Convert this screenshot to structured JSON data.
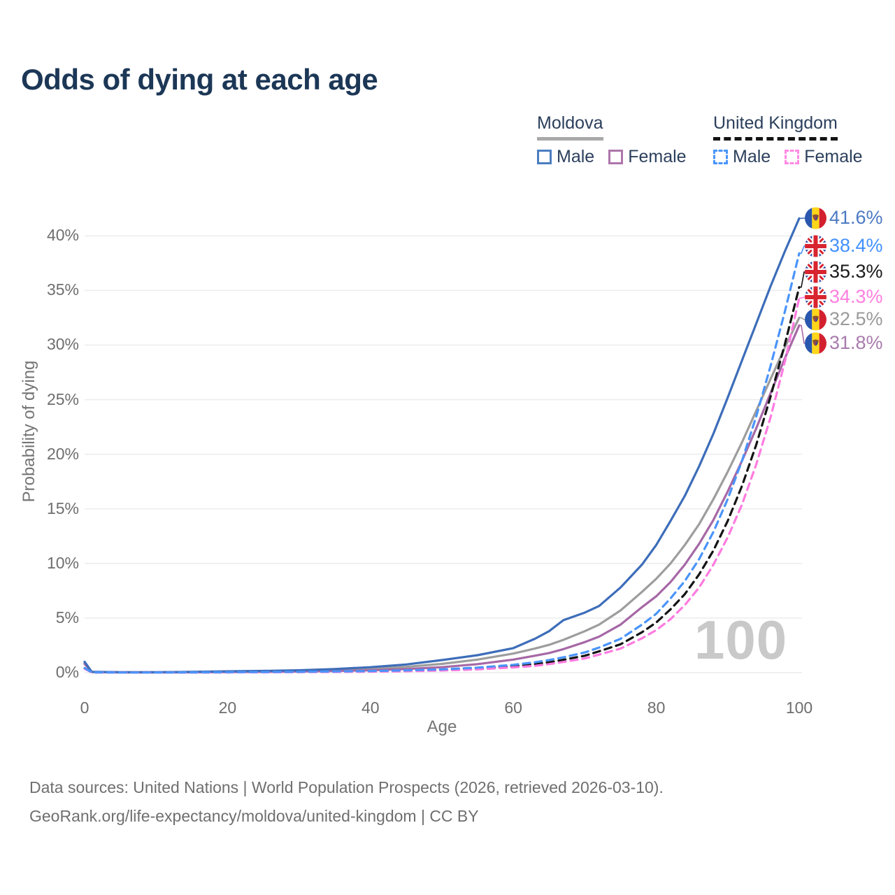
{
  "title": "Odds of dying at each age",
  "legend": {
    "groups": [
      {
        "label": "Moldova",
        "line_style": "solid",
        "underline_color": "#a9a9a9",
        "items": [
          {
            "label": "Male",
            "color": "#4b7ec0",
            "dashed": false
          },
          {
            "label": "Female",
            "color": "#ad76ac",
            "dashed": false
          }
        ]
      },
      {
        "label": "United Kingdom",
        "line_style": "dashed",
        "underline_color": "#141414",
        "items": [
          {
            "label": "Male",
            "color": "#4a94fa",
            "dashed": true
          },
          {
            "label": "Female",
            "color": "#ff8ae4",
            "dashed": true
          }
        ]
      }
    ]
  },
  "axes": {
    "y_label": "Probability of dying",
    "x_label": "Age",
    "y_ticks": [
      {
        "label": "0%",
        "value": 0
      },
      {
        "label": "5%",
        "value": 5
      },
      {
        "label": "10%",
        "value": 10
      },
      {
        "label": "15%",
        "value": 15
      },
      {
        "label": "20%",
        "value": 20
      },
      {
        "label": "25%",
        "value": 25
      },
      {
        "label": "30%",
        "value": 30
      },
      {
        "label": "35%",
        "value": 35
      },
      {
        "label": "40%",
        "value": 40
      }
    ],
    "x_ticks": [
      {
        "label": "0",
        "value": 0
      },
      {
        "label": "20",
        "value": 20
      },
      {
        "label": "40",
        "value": 40
      },
      {
        "label": "60",
        "value": 60
      },
      {
        "label": "80",
        "value": 80
      },
      {
        "label": "100",
        "value": 100
      }
    ],
    "grid": true
  },
  "watermark": "100",
  "footer": {
    "line1": "Data sources: United Nations | World Population Prospects (2026, retrieved 2026-03-10).",
    "line2": "GeoRank.org/life-expectancy/moldova/united-kingdom | CC BY"
  },
  "chart_data": {
    "type": "line",
    "title": "Odds of dying at each age",
    "xlabel": "Age",
    "ylabel": "Probability of dying",
    "xlim": [
      0,
      100
    ],
    "ylim_percent": [
      0,
      42
    ],
    "legend_position": "top-right",
    "grid": "horizontal",
    "x": [
      0,
      1,
      5,
      10,
      15,
      20,
      25,
      30,
      35,
      40,
      45,
      50,
      55,
      60,
      63,
      65,
      67,
      70,
      72,
      75,
      78,
      80,
      82,
      84,
      86,
      88,
      90,
      92,
      94,
      96,
      98,
      100
    ],
    "series": [
      {
        "name": "Moldova Male",
        "country": "Moldova",
        "sex": "Male",
        "color": "#3d6db9",
        "label_color": "#4c7ac2",
        "dashed": false,
        "flag": "moldova",
        "end_label": "41.6%",
        "values_percent": [
          1.0,
          0.08,
          0.04,
          0.04,
          0.07,
          0.12,
          0.16,
          0.22,
          0.33,
          0.5,
          0.75,
          1.15,
          1.6,
          2.25,
          3.1,
          3.8,
          4.8,
          5.5,
          6.1,
          7.8,
          9.9,
          11.7,
          13.9,
          16.2,
          18.9,
          21.9,
          25.2,
          28.6,
          32.0,
          35.4,
          38.6,
          41.6
        ]
      },
      {
        "name": "United Kingdom Male",
        "country": "United Kingdom",
        "sex": "Male",
        "color": "#4a94fa",
        "label_color": "#4291ff",
        "dashed": true,
        "flag": "uk",
        "end_label": "38.4%",
        "values_percent": [
          0.42,
          0.03,
          0.01,
          0.01,
          0.025,
          0.045,
          0.06,
          0.08,
          0.11,
          0.15,
          0.21,
          0.3,
          0.46,
          0.72,
          0.95,
          1.15,
          1.4,
          1.85,
          2.3,
          3.1,
          4.4,
          5.4,
          6.8,
          8.4,
          10.4,
          12.9,
          15.9,
          19.4,
          23.5,
          28.1,
          33.1,
          38.4
        ]
      },
      {
        "name": "United Kingdom (both sexes)",
        "country": "United Kingdom",
        "sex": "Both",
        "color": "#141414",
        "label_color": "#1a1a1a",
        "dashed": true,
        "flag": "uk",
        "end_label": "35.3%",
        "values_percent": [
          0.39,
          0.028,
          0.009,
          0.009,
          0.02,
          0.035,
          0.05,
          0.065,
          0.09,
          0.12,
          0.17,
          0.25,
          0.38,
          0.6,
          0.78,
          0.95,
          1.18,
          1.55,
          1.95,
          2.6,
          3.7,
          4.6,
          5.8,
          7.2,
          9.0,
          11.2,
          13.9,
          17.1,
          20.9,
          25.3,
          30.1,
          35.3
        ]
      },
      {
        "name": "United Kingdom Female",
        "country": "United Kingdom",
        "sex": "Female",
        "color": "#ff7be0",
        "label_color": "#ff80e0",
        "dashed": true,
        "flag": "uk",
        "end_label": "34.3%",
        "values_percent": [
          0.36,
          0.025,
          0.008,
          0.008,
          0.015,
          0.025,
          0.035,
          0.05,
          0.065,
          0.09,
          0.13,
          0.2,
          0.3,
          0.48,
          0.62,
          0.78,
          0.98,
          1.3,
          1.65,
          2.2,
          3.15,
          3.9,
          4.9,
          6.2,
          7.8,
          9.9,
          12.4,
          15.4,
          19.1,
          23.4,
          28.5,
          34.3
        ]
      },
      {
        "name": "Moldova (both sexes)",
        "country": "Moldova",
        "sex": "Both",
        "color": "#9d9d9d",
        "label_color": "#9a9a9a",
        "dashed": false,
        "flag": "moldova",
        "end_label": "32.5%",
        "values_percent": [
          0.9,
          0.07,
          0.03,
          0.03,
          0.05,
          0.09,
          0.12,
          0.17,
          0.24,
          0.36,
          0.53,
          0.8,
          1.2,
          1.75,
          2.2,
          2.55,
          3.0,
          3.8,
          4.4,
          5.7,
          7.4,
          8.6,
          10.0,
          11.7,
          13.6,
          15.9,
          18.4,
          21.1,
          24.0,
          26.9,
          29.8,
          32.5
        ]
      },
      {
        "name": "Moldova Female",
        "country": "Moldova",
        "sex": "Female",
        "color": "#a668a6",
        "label_color": "#a97bad",
        "dashed": false,
        "flag": "moldova",
        "end_label": "31.8%",
        "values_percent": [
          0.8,
          0.06,
          0.025,
          0.025,
          0.035,
          0.05,
          0.07,
          0.1,
          0.15,
          0.22,
          0.33,
          0.5,
          0.78,
          1.2,
          1.55,
          1.8,
          2.15,
          2.8,
          3.3,
          4.4,
          6.0,
          7.0,
          8.3,
          9.9,
          11.8,
          14.0,
          16.6,
          19.4,
          22.4,
          25.6,
          28.8,
          31.8
        ]
      }
    ],
    "flag_colors": {
      "moldova": {
        "blue": "#2a57ae",
        "yellow": "#ffd619",
        "red": "#d3202f",
        "emblem": "#8a5430"
      },
      "uk": {
        "blue": "#24439e",
        "red": "#d8242f",
        "white": "#ffffff"
      }
    }
  }
}
